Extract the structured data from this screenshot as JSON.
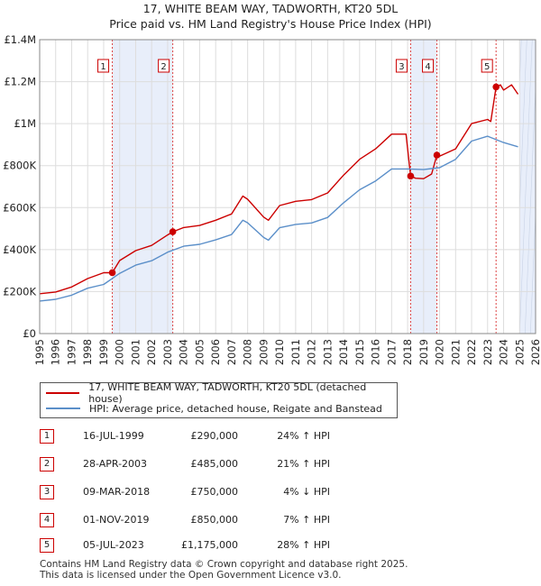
{
  "title_line1": "17, WHITE BEAM WAY, TADWORTH, KT20 5DL",
  "title_line2": "Price paid vs. HM Land Registry's House Price Index (HPI)",
  "colors": {
    "property": "#cc0000",
    "hpi": "#5b8fc9",
    "shade": "#e8eefa",
    "grid": "#dddddd",
    "vline": "#dd4444"
  },
  "chart_data": {
    "type": "line",
    "xlim": [
      1995,
      2026
    ],
    "ylim": [
      0,
      1400000
    ],
    "y_ticks": [
      0,
      200000,
      400000,
      600000,
      800000,
      1000000,
      1200000,
      1400000
    ],
    "y_tick_labels": [
      "£0",
      "£200K",
      "£400K",
      "£600K",
      "£800K",
      "£1M",
      "£1.2M",
      "£1.4M"
    ],
    "x_ticks": [
      1995,
      1996,
      1997,
      1998,
      1999,
      2000,
      2001,
      2002,
      2003,
      2004,
      2005,
      2006,
      2007,
      2008,
      2009,
      2010,
      2011,
      2012,
      2013,
      2014,
      2015,
      2016,
      2017,
      2018,
      2019,
      2020,
      2021,
      2022,
      2023,
      2024,
      2025,
      2026
    ],
    "shaded_ranges": [
      [
        1999.54,
        2003.32
      ],
      [
        2018.19,
        2019.83
      ],
      [
        2025.0,
        2026.0
      ]
    ],
    "series": [
      {
        "name": "17, WHITE BEAM WAY, TADWORTH, KT20 5DL (detached house)",
        "x": [
          1995,
          1996,
          1997,
          1998,
          1999,
          1999.54,
          2000,
          2001,
          2002,
          2003,
          2003.32,
          2004,
          2005,
          2006,
          2007,
          2007.7,
          2008,
          2009,
          2009.3,
          2010,
          2011,
          2012,
          2013,
          2014,
          2015,
          2016,
          2017,
          2017.9,
          2018.19,
          2018.5,
          2019,
          2019.5,
          2019.83,
          2020,
          2021,
          2022,
          2023,
          2023.2,
          2023.53,
          2023.8,
          2024,
          2024.5,
          2024.9
        ],
        "values": [
          190000,
          198000,
          222000,
          262000,
          290000,
          290000,
          348000,
          395000,
          420000,
          470000,
          485000,
          505000,
          515000,
          540000,
          570000,
          655000,
          640000,
          555000,
          540000,
          610000,
          630000,
          638000,
          670000,
          755000,
          830000,
          880000,
          950000,
          950000,
          750000,
          740000,
          738000,
          760000,
          850000,
          845000,
          880000,
          1000000,
          1020000,
          1010000,
          1175000,
          1185000,
          1160000,
          1185000,
          1140000
        ]
      },
      {
        "name": "HPI: Average price, detached house, Reigate and Banstead",
        "x": [
          1995,
          1996,
          1997,
          1998,
          1999,
          2000,
          2001,
          2002,
          2003,
          2004,
          2005,
          2006,
          2007,
          2007.7,
          2008,
          2009,
          2009.3,
          2010,
          2011,
          2012,
          2013,
          2014,
          2015,
          2016,
          2017,
          2018,
          2019,
          2020,
          2021,
          2022,
          2023,
          2024,
          2024.9
        ],
        "values": [
          155000,
          163000,
          183000,
          216000,
          234000,
          287000,
          326000,
          347000,
          388000,
          416000,
          425000,
          446000,
          472000,
          540000,
          528000,
          458000,
          445000,
          504000,
          520000,
          527000,
          553000,
          623000,
          685000,
          727000,
          784000,
          784000,
          781000,
          790000,
          830000,
          917000,
          940000,
          910000,
          890000
        ]
      }
    ],
    "sales": [
      {
        "label": "1",
        "date": "16-JUL-1999",
        "x": 1999.54,
        "value": 290000
      },
      {
        "label": "2",
        "date": "28-APR-2003",
        "x": 2003.32,
        "value": 485000
      },
      {
        "label": "3",
        "date": "09-MAR-2018",
        "x": 2018.19,
        "value": 750000
      },
      {
        "label": "4",
        "date": "01-NOV-2019",
        "x": 2019.83,
        "value": 850000
      },
      {
        "label": "5",
        "date": "05-JUL-2023",
        "x": 2023.53,
        "value": 1175000
      }
    ]
  },
  "legend": {
    "property_label": "17, WHITE BEAM WAY, TADWORTH, KT20 5DL (detached house)",
    "hpi_label": "HPI: Average price, detached house, Reigate and Banstead"
  },
  "sales_table": [
    {
      "num": "1",
      "date": "16-JUL-1999",
      "price": "£290,000",
      "hpi": "24% ↑ HPI"
    },
    {
      "num": "2",
      "date": "28-APR-2003",
      "price": "£485,000",
      "hpi": "21% ↑ HPI"
    },
    {
      "num": "3",
      "date": "09-MAR-2018",
      "price": "£750,000",
      "hpi": "4% ↓ HPI"
    },
    {
      "num": "4",
      "date": "01-NOV-2019",
      "price": "£850,000",
      "hpi": "7% ↑ HPI"
    },
    {
      "num": "5",
      "date": "05-JUL-2023",
      "price": "£1,175,000",
      "hpi": "28% ↑ HPI"
    }
  ],
  "footer_line1": "Contains HM Land Registry data © Crown copyright and database right 2025.",
  "footer_line2": "This data is licensed under the Open Government Licence v3.0."
}
